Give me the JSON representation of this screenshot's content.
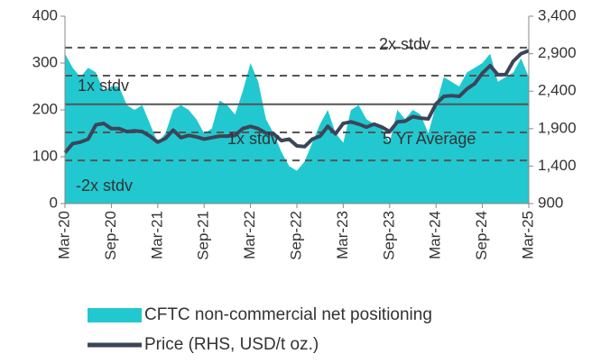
{
  "chart_data": {
    "type": "combo",
    "categories": [
      "Mar-20",
      null,
      null,
      null,
      null,
      null,
      "Sep-20",
      null,
      null,
      null,
      null,
      null,
      "Mar-21",
      null,
      null,
      null,
      null,
      null,
      "Sep-21",
      null,
      null,
      null,
      null,
      null,
      "Mar-22",
      null,
      null,
      null,
      null,
      null,
      "Sep-22",
      null,
      null,
      null,
      null,
      null,
      "Mar-23",
      null,
      null,
      null,
      null,
      null,
      "Sep-23",
      null,
      null,
      null,
      null,
      null,
      "Mar-24",
      null,
      null,
      null,
      null,
      null,
      "Sep-24",
      null,
      null,
      null,
      null,
      null,
      "Mar-25"
    ],
    "series": [
      {
        "name": "CFTC non-commercial net positioning",
        "type": "area",
        "color": "#22c8d0",
        "values": [
          320,
          290,
          270,
          290,
          280,
          240,
          250,
          250,
          210,
          200,
          210,
          170,
          130,
          150,
          200,
          210,
          200,
          180,
          150,
          160,
          220,
          210,
          190,
          240,
          300,
          260,
          180,
          150,
          110,
          80,
          70,
          90,
          130,
          170,
          200,
          150,
          130,
          200,
          210,
          180,
          170,
          160,
          130,
          200,
          180,
          200,
          190,
          150,
          210,
          270,
          260,
          250,
          280,
          290,
          300,
          320,
          260,
          270,
          280,
          310,
          270
        ]
      },
      {
        "name": "Price (RHS, USD/t oz.)",
        "type": "line",
        "axis": "y2",
        "color": "#3b4559",
        "values": [
          1580,
          1700,
          1720,
          1760,
          1950,
          1970,
          1900,
          1900,
          1860,
          1870,
          1860,
          1800,
          1720,
          1770,
          1880,
          1780,
          1810,
          1790,
          1760,
          1780,
          1800,
          1800,
          1810,
          1900,
          1930,
          1900,
          1840,
          1830,
          1740,
          1760,
          1670,
          1660,
          1760,
          1800,
          1930,
          1830,
          1970,
          1990,
          1960,
          1920,
          1960,
          1920,
          1860,
          1990,
          2000,
          2060,
          2040,
          2030,
          2230,
          2330,
          2340,
          2330,
          2430,
          2500,
          2640,
          2740,
          2620,
          2620,
          2800,
          2900,
          2940
        ]
      }
    ],
    "reference_lines": [
      {
        "label": "2x stdv",
        "value": 333,
        "style": "dashed"
      },
      {
        "label": "1x stdv",
        "value": 273,
        "style": "dashed"
      },
      {
        "label": "5 Yr Average",
        "value": 212,
        "style": "solid"
      },
      {
        "label": "1x stdv",
        "value": 152,
        "style": "dashed"
      },
      {
        "label": "-2x stdv",
        "value": 92,
        "style": "dashed"
      }
    ],
    "ylim": [
      0,
      400
    ],
    "yticks": [
      0,
      100,
      200,
      300,
      400
    ],
    "y2lim": [
      900,
      3400
    ],
    "y2ticks": [
      900,
      {
        "value": 1400,
        "label": "1,400"
      },
      {
        "value": 1900,
        "label": "1,900"
      },
      {
        "value": 2400,
        "label": "2,400"
      },
      {
        "value": 2900,
        "label": "2,900"
      },
      {
        "value": 3400,
        "label": "3,400"
      }
    ],
    "legend": "bottom"
  }
}
